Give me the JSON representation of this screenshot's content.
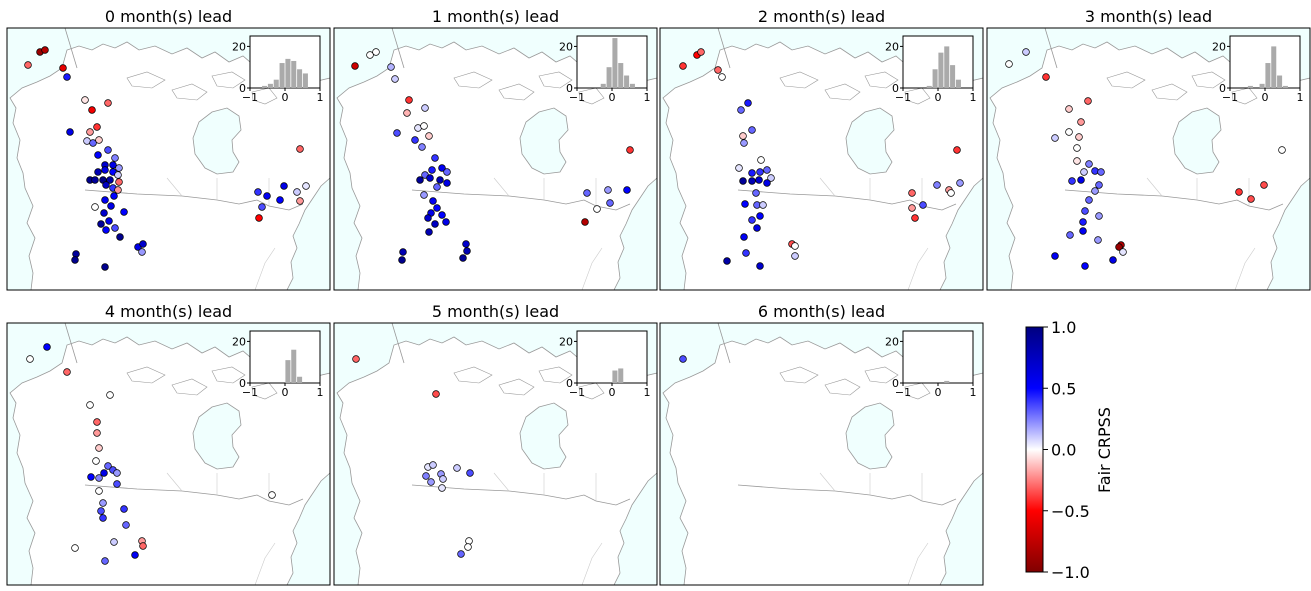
{
  "chart_data": {
    "type": "scatter",
    "colorbar": {
      "label": "Fair CRPSS",
      "range": [
        -1.0,
        1.0
      ],
      "ticks": [
        "1.0",
        "0.5",
        "0.0",
        "−0.5",
        "−1.0"
      ],
      "colormap": [
        "#800000",
        "#ff0000",
        "#ffffff",
        "#0000ff",
        "#000080"
      ]
    },
    "inset_histogram": {
      "xticks": [
        "−1",
        "0",
        "1"
      ],
      "yticks": [
        "0",
        "20"
      ],
      "ylim": [
        0,
        25
      ],
      "bar_color": "#aaaaaa"
    },
    "panels": [
      {
        "title": "0 month(s) lead",
        "hist": [
          0,
          0,
          1,
          2,
          4,
          12,
          14,
          13,
          9,
          7,
          0,
          0
        ],
        "stations": [
          [
            40,
            52,
            -0.9
          ],
          [
            45,
            50,
            -0.8
          ],
          [
            28,
            65,
            -0.3
          ],
          [
            63,
            68,
            -0.6
          ],
          [
            67,
            77,
            0.45
          ],
          [
            85,
            100,
            -0.05
          ],
          [
            92,
            110,
            -0.55
          ],
          [
            108,
            103,
            -0.3
          ],
          [
            70,
            132,
            0.6
          ],
          [
            90,
            132,
            -0.2
          ],
          [
            97,
            127,
            -0.4
          ],
          [
            87,
            141,
            0.1
          ],
          [
            93,
            143,
            0.3
          ],
          [
            99,
            140,
            -0.1
          ],
          [
            98,
            155,
            0.5
          ],
          [
            108,
            150,
            0.35
          ],
          [
            115,
            158,
            0.25
          ],
          [
            105,
            165,
            0.7
          ],
          [
            113,
            165,
            0.6
          ],
          [
            119,
            168,
            0.2
          ],
          [
            98,
            172,
            0.8
          ],
          [
            105,
            170,
            0.6
          ],
          [
            113,
            172,
            0.5
          ],
          [
            118,
            175,
            0.1
          ],
          [
            90,
            180,
            0.95
          ],
          [
            95,
            180,
            0.9
          ],
          [
            103,
            180,
            1.0
          ],
          [
            110,
            180,
            0.85
          ],
          [
            119,
            182,
            -0.3
          ],
          [
            106,
            185,
            0.75
          ],
          [
            113,
            188,
            0.4
          ],
          [
            118,
            190,
            -0.2
          ],
          [
            95,
            207,
            0.0
          ],
          [
            105,
            200,
            0.55
          ],
          [
            111,
            206,
            0.6
          ],
          [
            114,
            196,
            0.5
          ],
          [
            104,
            213,
            0.7
          ],
          [
            124,
            212,
            0.5
          ],
          [
            101,
            224,
            0.9
          ],
          [
            109,
            221,
            0.6
          ],
          [
            106,
            230,
            0.5
          ],
          [
            115,
            228,
            0.35
          ],
          [
            120,
            237,
            0.95
          ],
          [
            138,
            247,
            0.6
          ],
          [
            143,
            244,
            0.7
          ],
          [
            142,
            252,
            0.2
          ],
          [
            76,
            254,
            0.9
          ],
          [
            75,
            260,
            0.95
          ],
          [
            105,
            267,
            0.95
          ],
          [
            300,
            149,
            -0.3
          ],
          [
            258,
            192,
            0.4
          ],
          [
            267,
            196,
            0.55
          ],
          [
            284,
            186,
            0.6
          ],
          [
            297,
            192,
            0.1
          ],
          [
            306,
            186,
            0.05
          ],
          [
            300,
            201,
            -0.2
          ],
          [
            280,
            200,
            0.5
          ],
          [
            259,
            218,
            -0.5
          ],
          [
            262,
            207,
            0.35
          ]
        ]
      },
      {
        "title": "1 month(s) lead",
        "hist": [
          0,
          0,
          0,
          0,
          2,
          10,
          24,
          12,
          6,
          2,
          0,
          0
        ],
        "stations": [
          [
            370,
            55,
            0.0
          ],
          [
            376,
            52,
            0.0
          ],
          [
            355,
            66,
            -0.7
          ],
          [
            391,
            67,
            0.15
          ],
          [
            395,
            79,
            0.1
          ],
          [
            409,
            100,
            -0.4
          ],
          [
            407,
            113,
            -0.15
          ],
          [
            425,
            108,
            0.1
          ],
          [
            397,
            133,
            0.35
          ],
          [
            418,
            128,
            0.05
          ],
          [
            424,
            126,
            0.0
          ],
          [
            429,
            136,
            -0.1
          ],
          [
            415,
            140,
            0.4
          ],
          [
            422,
            147,
            0.25
          ],
          [
            435,
            158,
            0.4
          ],
          [
            442,
            168,
            0.55
          ],
          [
            432,
            170,
            0.45
          ],
          [
            447,
            172,
            0.3
          ],
          [
            425,
            175,
            0.3
          ],
          [
            420,
            180,
            0.9
          ],
          [
            430,
            178,
            0.7
          ],
          [
            440,
            180,
            0.8
          ],
          [
            447,
            183,
            0.6
          ],
          [
            437,
            187,
            0.3
          ],
          [
            424,
            195,
            0.2
          ],
          [
            433,
            201,
            0.55
          ],
          [
            437,
            208,
            0.5
          ],
          [
            431,
            213,
            0.6
          ],
          [
            428,
            218,
            0.7
          ],
          [
            442,
            215,
            0.5
          ],
          [
            435,
            224,
            0.75
          ],
          [
            429,
            232,
            0.8
          ],
          [
            446,
            222,
            0.6
          ],
          [
            466,
            244,
            0.7
          ],
          [
            467,
            251,
            0.8
          ],
          [
            463,
            258,
            0.9
          ],
          [
            403,
            252,
            0.8
          ],
          [
            402,
            260,
            0.95
          ],
          [
            630,
            150,
            -0.4
          ],
          [
            587,
            193,
            0.3
          ],
          [
            608,
            190,
            0.2
          ],
          [
            627,
            190,
            0.5
          ],
          [
            585,
            222,
            -0.8
          ],
          [
            597,
            209,
            0.0
          ],
          [
            610,
            203,
            0.3
          ]
        ]
      },
      {
        "title": "2 month(s) lead",
        "hist": [
          0,
          0,
          0,
          0,
          1,
          9,
          17,
          20,
          11,
          4,
          0,
          0
        ],
        "stations": [
          [
            697,
            55,
            -0.5
          ],
          [
            701,
            52,
            -0.3
          ],
          [
            683,
            66,
            -0.4
          ],
          [
            718,
            70,
            -0.3
          ],
          [
            722,
            77,
            0.0
          ],
          [
            741,
            110,
            0.3
          ],
          [
            748,
            103,
            0.45
          ],
          [
            752,
            130,
            0.3
          ],
          [
            743,
            136,
            -0.1
          ],
          [
            744,
            143,
            0.2
          ],
          [
            739,
            168,
            0.05
          ],
          [
            761,
            160,
            0.0
          ],
          [
            752,
            173,
            0.45
          ],
          [
            760,
            172,
            0.4
          ],
          [
            767,
            170,
            0.3
          ],
          [
            743,
            181,
            0.9
          ],
          [
            752,
            181,
            0.8
          ],
          [
            759,
            180,
            0.7
          ],
          [
            771,
            178,
            0.1
          ],
          [
            767,
            183,
            0.6
          ],
          [
            756,
            193,
            0.3
          ],
          [
            745,
            204,
            0.5
          ],
          [
            757,
            205,
            0.3
          ],
          [
            763,
            205,
            0.1
          ],
          [
            752,
            220,
            0.4
          ],
          [
            760,
            216,
            0.5
          ],
          [
            757,
            228,
            0.6
          ],
          [
            744,
            237,
            0.55
          ],
          [
            746,
            253,
            0.4
          ],
          [
            727,
            261,
            0.85
          ],
          [
            760,
            266,
            0.7
          ],
          [
            792,
            244,
            -0.35
          ],
          [
            795,
            246,
            0.0
          ],
          [
            795,
            256,
            0.1
          ],
          [
            957,
            150,
            -0.4
          ],
          [
            912,
            193,
            -0.3
          ],
          [
            937,
            185,
            0.25
          ],
          [
            949,
            190,
            -0.2
          ],
          [
            912,
            208,
            -0.2
          ],
          [
            923,
            205,
            0.35
          ],
          [
            915,
            218,
            -0.4
          ],
          [
            951,
            193,
            0.0
          ],
          [
            960,
            183,
            0.2
          ]
        ]
      },
      {
        "title": "3 month(s) lead",
        "hist": [
          0,
          0,
          0,
          1,
          0,
          2,
          12,
          20,
          6,
          1,
          0,
          0
        ],
        "stations": [
          [
            1009,
            64,
            0.0
          ],
          [
            1026,
            52,
            0.1
          ],
          [
            1046,
            77,
            -0.4
          ],
          [
            1088,
            101,
            -0.3
          ],
          [
            1069,
            109,
            -0.1
          ],
          [
            1081,
            122,
            -0.2
          ],
          [
            1069,
            132,
            0.0
          ],
          [
            1079,
            137,
            -0.1
          ],
          [
            1055,
            138,
            0.1
          ],
          [
            1077,
            148,
            0.0
          ],
          [
            1077,
            161,
            -0.05
          ],
          [
            1089,
            164,
            0.25
          ],
          [
            1084,
            172,
            0.1
          ],
          [
            1095,
            171,
            0.4
          ],
          [
            1101,
            172,
            0.3
          ],
          [
            1099,
            185,
            0.3
          ],
          [
            1072,
            181,
            0.4
          ],
          [
            1081,
            180,
            0.6
          ],
          [
            1095,
            191,
            0.2
          ],
          [
            1089,
            200,
            0.3
          ],
          [
            1085,
            211,
            0.35
          ],
          [
            1083,
            222,
            0.45
          ],
          [
            1099,
            216,
            0.2
          ],
          [
            1070,
            235,
            0.3
          ],
          [
            1083,
            231,
            0.55
          ],
          [
            1098,
            240,
            0.2
          ],
          [
            1121,
            245,
            -0.8
          ],
          [
            1119,
            247,
            -0.9
          ],
          [
            1123,
            252,
            0.05
          ],
          [
            1113,
            260,
            0.6
          ],
          [
            1085,
            266,
            0.5
          ],
          [
            1055,
            256,
            0.55
          ],
          [
            1282,
            150,
            0.0
          ],
          [
            1239,
            192,
            -0.4
          ],
          [
            1264,
            185,
            -0.35
          ],
          [
            1251,
            199,
            -0.35
          ]
        ]
      },
      {
        "title": "4 month(s) lead",
        "hist": [
          0,
          0,
          0,
          0,
          0,
          0,
          11,
          16,
          3,
          0,
          0,
          0
        ],
        "stations": [
          [
            30,
            359,
            0.0
          ],
          [
            47,
            347,
            0.5
          ],
          [
            67,
            372,
            -0.3
          ],
          [
            110,
            395,
            0.0
          ],
          [
            90,
            405,
            0.0
          ],
          [
            97,
            422,
            -0.3
          ],
          [
            97,
            433,
            -0.2
          ],
          [
            99,
            448,
            -0.1
          ],
          [
            96,
            461,
            0.0
          ],
          [
            108,
            466,
            0.3
          ],
          [
            113,
            470,
            0.35
          ],
          [
            91,
            477,
            0.5
          ],
          [
            104,
            473,
            0.6
          ],
          [
            99,
            478,
            0.25
          ],
          [
            117,
            473,
            0.2
          ],
          [
            117,
            484,
            0.35
          ],
          [
            99,
            491,
            0.0
          ],
          [
            103,
            503,
            0.2
          ],
          [
            101,
            511,
            0.35
          ],
          [
            103,
            518,
            0.4
          ],
          [
            124,
            509,
            0.4
          ],
          [
            126,
            525,
            0.3
          ],
          [
            114,
            542,
            0.1
          ],
          [
            142,
            541,
            -0.2
          ],
          [
            143,
            546,
            -0.3
          ],
          [
            135,
            555,
            0.55
          ],
          [
            105,
            561,
            0.3
          ],
          [
            75,
            548,
            0.0
          ],
          [
            272,
            495,
            0.0
          ]
        ]
      },
      {
        "title": "5 month(s) lead",
        "hist": [
          0,
          0,
          0,
          0,
          0,
          0,
          6,
          7,
          0,
          0,
          0,
          0
        ],
        "stations": [
          [
            356,
            359,
            -0.3
          ],
          [
            436,
            394,
            -0.35
          ],
          [
            428,
            467,
            0.05
          ],
          [
            433,
            465,
            0.1
          ],
          [
            426,
            476,
            0.25
          ],
          [
            441,
            474,
            0.2
          ],
          [
            443,
            479,
            0.1
          ],
          [
            457,
            468,
            0.1
          ],
          [
            470,
            473,
            0.35
          ],
          [
            431,
            482,
            0.2
          ],
          [
            442,
            488,
            0.05
          ],
          [
            469,
            541,
            0.0
          ],
          [
            468,
            547,
            0.0
          ],
          [
            461,
            554,
            0.3
          ]
        ]
      },
      {
        "title": "6 month(s) lead",
        "hist": [
          0,
          0,
          0,
          0,
          0,
          0,
          0,
          1,
          0,
          0,
          0,
          0
        ],
        "stations": [
          [
            683,
            359,
            0.35
          ]
        ]
      }
    ]
  }
}
